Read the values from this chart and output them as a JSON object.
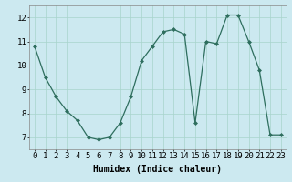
{
  "x": [
    0,
    1,
    2,
    3,
    4,
    5,
    6,
    7,
    8,
    9,
    10,
    11,
    12,
    13,
    14,
    15,
    16,
    17,
    18,
    19,
    20,
    21,
    22,
    23
  ],
  "y": [
    10.8,
    9.5,
    8.7,
    8.1,
    7.7,
    7.0,
    6.9,
    7.0,
    7.6,
    8.7,
    10.2,
    10.8,
    11.4,
    11.5,
    11.3,
    7.6,
    11.0,
    10.9,
    12.1,
    12.1,
    11.0,
    9.8,
    7.1,
    7.1
  ],
  "xlabel": "Humidex (Indice chaleur)",
  "ylim": [
    6.5,
    12.5
  ],
  "xlim": [
    -0.5,
    23.5
  ],
  "line_color": "#2e6e5e",
  "marker_color": "#2e6e5e",
  "bg_color": "#cce9f0",
  "grid_color": "#a8d4cc",
  "yticks": [
    7,
    8,
    9,
    10,
    11,
    12
  ],
  "xticks": [
    0,
    1,
    2,
    3,
    4,
    5,
    6,
    7,
    8,
    9,
    10,
    11,
    12,
    13,
    14,
    15,
    16,
    17,
    18,
    19,
    20,
    21,
    22,
    23
  ],
  "xlabel_fontsize": 7,
  "tick_fontsize": 6.5
}
